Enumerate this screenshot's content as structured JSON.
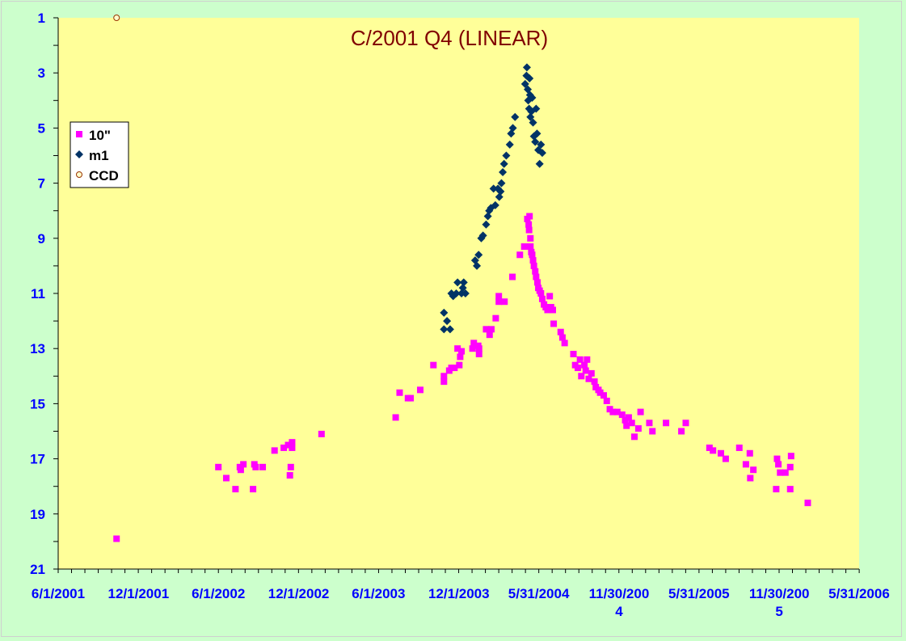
{
  "chart_data": {
    "type": "scatter",
    "title": "C/2001 Q4 (LINEAR)",
    "xlabel": "",
    "ylabel": "",
    "x_axis": {
      "type": "date",
      "range": [
        "2001-06-01",
        "2006-05-31"
      ],
      "ticks": [
        {
          "date": "2001-06-01",
          "label": [
            "6/1/2001"
          ]
        },
        {
          "date": "2001-12-01",
          "label": [
            "12/1/2001"
          ]
        },
        {
          "date": "2002-06-01",
          "label": [
            "6/1/2002"
          ]
        },
        {
          "date": "2002-12-01",
          "label": [
            "12/1/2002"
          ]
        },
        {
          "date": "2003-06-01",
          "label": [
            "6/1/2003"
          ]
        },
        {
          "date": "2003-12-01",
          "label": [
            "12/1/2003"
          ]
        },
        {
          "date": "2004-05-31",
          "label": [
            "5/31/2004"
          ]
        },
        {
          "date": "2004-11-30",
          "label": [
            "11/30/200",
            "4"
          ]
        },
        {
          "date": "2005-05-31",
          "label": [
            "5/31/2005"
          ]
        },
        {
          "date": "2005-11-30",
          "label": [
            "11/30/200",
            "5"
          ]
        },
        {
          "date": "2006-05-31",
          "label": [
            "5/31/2006"
          ]
        }
      ]
    },
    "y_axis": {
      "reversed": true,
      "range": [
        1,
        21
      ],
      "ticks": [
        1,
        3,
        5,
        7,
        9,
        11,
        13,
        15,
        17,
        19,
        21
      ]
    },
    "grid": false,
    "legend": {
      "position": "top-left",
      "entries": [
        {
          "label": "10\"",
          "marker": "square",
          "color": "#ff00ff"
        },
        {
          "label": "m1",
          "marker": "diamond",
          "color": "#003366"
        },
        {
          "label": "CCD",
          "marker": "circle",
          "color": "#ffffcc"
        }
      ]
    },
    "colors": {
      "plot_background": "#ffff99",
      "page_background": "#ccffcc",
      "title": "#800000",
      "axis_labels": "#0000ff",
      "ten_inch": "#ff00ff",
      "m1": "#003366",
      "ccd_fill": "#ffffcc",
      "ccd_stroke": "#993300"
    },
    "series": [
      {
        "name": "10\"",
        "marker": "square",
        "points": [
          [
            "2001-10-12",
            19.9
          ],
          [
            "2002-06-01",
            17.3
          ],
          [
            "2002-06-19",
            17.7
          ],
          [
            "2002-07-10",
            18.1
          ],
          [
            "2002-07-22",
            17.4
          ],
          [
            "2002-07-28",
            17.2
          ],
          [
            "2002-07-20",
            17.3
          ],
          [
            "2002-08-19",
            18.1
          ],
          [
            "2002-08-22",
            17.2
          ],
          [
            "2002-08-25",
            17.3
          ],
          [
            "2002-09-10",
            17.3
          ],
          [
            "2002-10-07",
            16.7
          ],
          [
            "2002-10-28",
            16.6
          ],
          [
            "2002-11-07",
            16.5
          ],
          [
            "2002-11-16",
            16.4
          ],
          [
            "2002-11-16",
            16.6
          ],
          [
            "2002-11-13",
            17.3
          ],
          [
            "2002-11-11",
            17.6
          ],
          [
            "2003-01-22",
            16.1
          ],
          [
            "2003-07-10",
            15.5
          ],
          [
            "2003-07-19",
            14.6
          ],
          [
            "2003-08-07",
            14.8
          ],
          [
            "2003-08-13",
            14.8
          ],
          [
            "2003-09-04",
            14.5
          ],
          [
            "2003-10-04",
            13.6
          ],
          [
            "2003-10-28",
            14.0
          ],
          [
            "2003-10-28",
            14.2
          ],
          [
            "2003-11-09",
            13.8
          ],
          [
            "2003-11-14",
            13.7
          ],
          [
            "2003-11-21",
            13.7
          ],
          [
            "2003-11-28",
            13.0
          ],
          [
            "2003-12-02",
            13.6
          ],
          [
            "2003-12-04",
            13.3
          ],
          [
            "2003-12-07",
            13.1
          ],
          [
            "2004-01-01",
            13.0
          ],
          [
            "2004-01-04",
            12.8
          ],
          [
            "2004-01-14",
            12.9
          ],
          [
            "2004-01-16",
            13.2
          ],
          [
            "2004-01-16",
            13.0
          ],
          [
            "2004-02-01",
            12.3
          ],
          [
            "2004-02-09",
            12.5
          ],
          [
            "2004-02-13",
            12.3
          ],
          [
            "2004-02-23",
            11.9
          ],
          [
            "2004-03-01",
            11.1
          ],
          [
            "2004-03-01",
            11.3
          ],
          [
            "2004-03-14",
            11.3
          ],
          [
            "2004-04-01",
            10.4
          ],
          [
            "2004-04-18",
            9.6
          ],
          [
            "2004-04-28",
            9.3
          ],
          [
            "2004-05-05",
            8.3
          ],
          [
            "2004-05-08",
            8.5
          ],
          [
            "2004-05-10",
            8.2
          ],
          [
            "2004-05-09",
            8.7
          ],
          [
            "2004-05-12",
            9.0
          ],
          [
            "2004-05-12",
            9.3
          ],
          [
            "2004-05-14",
            9.5
          ],
          [
            "2004-05-16",
            9.6
          ],
          [
            "2004-05-18",
            9.8
          ],
          [
            "2004-05-20",
            10.0
          ],
          [
            "2004-05-23",
            10.2
          ],
          [
            "2004-05-25",
            10.4
          ],
          [
            "2004-05-28",
            10.6
          ],
          [
            "2004-05-30",
            10.8
          ],
          [
            "2004-06-02",
            10.9
          ],
          [
            "2004-06-05",
            11.0
          ],
          [
            "2004-06-08",
            11.2
          ],
          [
            "2004-06-12",
            11.4
          ],
          [
            "2004-06-16",
            11.5
          ],
          [
            "2004-06-20",
            11.6
          ],
          [
            "2004-06-25",
            11.1
          ],
          [
            "2004-06-28",
            11.5
          ],
          [
            "2004-07-02",
            11.6
          ],
          [
            "2004-07-04",
            12.1
          ],
          [
            "2004-07-20",
            12.4
          ],
          [
            "2004-07-24",
            12.6
          ],
          [
            "2004-07-29",
            12.8
          ],
          [
            "2004-08-18",
            13.2
          ],
          [
            "2004-08-22",
            13.6
          ],
          [
            "2004-08-28",
            13.7
          ],
          [
            "2004-09-02",
            13.4
          ],
          [
            "2004-09-05",
            14.0
          ],
          [
            "2004-09-12",
            13.6
          ],
          [
            "2004-09-15",
            13.8
          ],
          [
            "2004-09-18",
            13.4
          ],
          [
            "2004-09-22",
            14.1
          ],
          [
            "2004-09-28",
            13.9
          ],
          [
            "2004-10-05",
            14.2
          ],
          [
            "2004-10-08",
            14.4
          ],
          [
            "2004-10-14",
            14.5
          ],
          [
            "2004-10-18",
            14.6
          ],
          [
            "2004-10-26",
            14.7
          ],
          [
            "2004-11-02",
            14.9
          ],
          [
            "2004-11-09",
            15.2
          ],
          [
            "2004-11-16",
            15.3
          ],
          [
            "2004-11-26",
            15.3
          ],
          [
            "2004-12-07",
            15.4
          ],
          [
            "2004-12-14",
            15.6
          ],
          [
            "2004-12-17",
            15.8
          ],
          [
            "2004-12-22",
            15.5
          ],
          [
            "2004-12-29",
            15.7
          ],
          [
            "2005-01-04",
            16.2
          ],
          [
            "2005-01-13",
            15.9
          ],
          [
            "2005-01-18",
            15.3
          ],
          [
            "2005-02-07",
            15.7
          ],
          [
            "2005-02-14",
            16.0
          ],
          [
            "2005-03-17",
            15.7
          ],
          [
            "2005-04-21",
            16.0
          ],
          [
            "2005-05-01",
            15.7
          ],
          [
            "2005-06-24",
            16.6
          ],
          [
            "2005-07-02",
            16.7
          ],
          [
            "2005-07-20",
            16.8
          ],
          [
            "2005-07-31",
            17.0
          ],
          [
            "2005-08-31",
            16.6
          ],
          [
            "2005-09-15",
            17.2
          ],
          [
            "2005-09-24",
            16.8
          ],
          [
            "2005-09-25",
            17.7
          ],
          [
            "2005-10-02",
            17.4
          ],
          [
            "2005-11-25",
            17.0
          ],
          [
            "2005-11-23",
            18.1
          ],
          [
            "2005-11-28",
            17.2
          ],
          [
            "2005-12-02",
            17.5
          ],
          [
            "2005-12-14",
            17.5
          ],
          [
            "2005-12-25",
            17.3
          ],
          [
            "2005-12-27",
            16.9
          ],
          [
            "2005-12-25",
            18.1
          ],
          [
            "2006-02-03",
            18.6
          ]
        ]
      },
      {
        "name": "m1",
        "marker": "diamond",
        "points": [
          [
            "2003-10-28",
            12.3
          ],
          [
            "2003-10-28",
            11.7
          ],
          [
            "2003-11-04",
            12.0
          ],
          [
            "2003-11-11",
            12.3
          ],
          [
            "2003-11-14",
            11.0
          ],
          [
            "2003-11-18",
            11.1
          ],
          [
            "2003-11-25",
            11.0
          ],
          [
            "2003-11-28",
            10.6
          ],
          [
            "2003-12-07",
            11.0
          ],
          [
            "2003-12-10",
            10.8
          ],
          [
            "2003-12-12",
            10.6
          ],
          [
            "2003-12-16",
            11.0
          ],
          [
            "2004-01-07",
            9.8
          ],
          [
            "2004-01-11",
            10.0
          ],
          [
            "2004-01-15",
            9.6
          ],
          [
            "2004-01-21",
            9.0
          ],
          [
            "2004-01-25",
            8.9
          ],
          [
            "2004-02-01",
            8.5
          ],
          [
            "2004-02-05",
            8.2
          ],
          [
            "2004-02-08",
            8.0
          ],
          [
            "2004-02-12",
            7.9
          ],
          [
            "2004-02-18",
            7.2
          ],
          [
            "2004-02-22",
            7.8
          ],
          [
            "2004-02-28",
            7.2
          ],
          [
            "2004-03-02",
            7.5
          ],
          [
            "2004-03-05",
            7.3
          ],
          [
            "2004-03-07",
            7.0
          ],
          [
            "2004-03-10",
            6.6
          ],
          [
            "2004-03-13",
            6.3
          ],
          [
            "2004-03-18",
            6.0
          ],
          [
            "2004-03-26",
            5.6
          ],
          [
            "2004-03-29",
            5.2
          ],
          [
            "2004-04-02",
            5.0
          ],
          [
            "2004-04-07",
            4.6
          ],
          [
            "2004-04-30",
            3.4
          ],
          [
            "2004-05-03",
            3.1
          ],
          [
            "2004-05-04",
            2.8
          ],
          [
            "2004-05-06",
            3.6
          ],
          [
            "2004-05-07",
            4.0
          ],
          [
            "2004-05-09",
            4.3
          ],
          [
            "2004-05-10",
            3.2
          ],
          [
            "2004-05-11",
            3.8
          ],
          [
            "2004-05-12",
            4.6
          ],
          [
            "2004-05-14",
            4.4
          ],
          [
            "2004-05-16",
            3.9
          ],
          [
            "2004-05-18",
            4.8
          ],
          [
            "2004-05-20",
            5.3
          ],
          [
            "2004-05-23",
            5.5
          ],
          [
            "2004-05-25",
            4.3
          ],
          [
            "2004-05-27",
            5.2
          ],
          [
            "2004-05-30",
            5.8
          ],
          [
            "2004-06-02",
            6.3
          ],
          [
            "2004-06-05",
            5.6
          ],
          [
            "2004-06-08",
            5.9
          ]
        ]
      },
      {
        "name": "CCD",
        "marker": "circle",
        "points": [
          [
            "2001-10-12",
            1.0
          ]
        ]
      }
    ]
  }
}
